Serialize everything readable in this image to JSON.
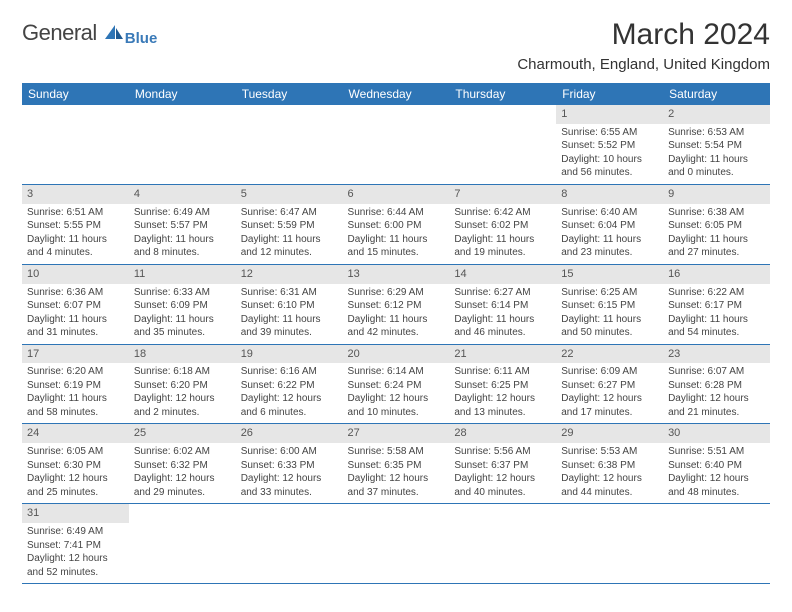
{
  "logo": {
    "text1": "General",
    "text2": "Blue"
  },
  "title": "March 2024",
  "location": "Charmouth, England, United Kingdom",
  "colors": {
    "header_bg": "#2e75b6",
    "daynum_bg": "#e6e6e6",
    "border": "#2e75b6"
  },
  "weekdays": [
    "Sunday",
    "Monday",
    "Tuesday",
    "Wednesday",
    "Thursday",
    "Friday",
    "Saturday"
  ],
  "weeks": [
    [
      null,
      null,
      null,
      null,
      null,
      {
        "n": "1",
        "sr": "6:55 AM",
        "ss": "5:52 PM",
        "dh": "10",
        "dm": "56"
      },
      {
        "n": "2",
        "sr": "6:53 AM",
        "ss": "5:54 PM",
        "dh": "11",
        "dm": "0"
      }
    ],
    [
      {
        "n": "3",
        "sr": "6:51 AM",
        "ss": "5:55 PM",
        "dh": "11",
        "dm": "4"
      },
      {
        "n": "4",
        "sr": "6:49 AM",
        "ss": "5:57 PM",
        "dh": "11",
        "dm": "8"
      },
      {
        "n": "5",
        "sr": "6:47 AM",
        "ss": "5:59 PM",
        "dh": "11",
        "dm": "12"
      },
      {
        "n": "6",
        "sr": "6:44 AM",
        "ss": "6:00 PM",
        "dh": "11",
        "dm": "15"
      },
      {
        "n": "7",
        "sr": "6:42 AM",
        "ss": "6:02 PM",
        "dh": "11",
        "dm": "19"
      },
      {
        "n": "8",
        "sr": "6:40 AM",
        "ss": "6:04 PM",
        "dh": "11",
        "dm": "23"
      },
      {
        "n": "9",
        "sr": "6:38 AM",
        "ss": "6:05 PM",
        "dh": "11",
        "dm": "27"
      }
    ],
    [
      {
        "n": "10",
        "sr": "6:36 AM",
        "ss": "6:07 PM",
        "dh": "11",
        "dm": "31"
      },
      {
        "n": "11",
        "sr": "6:33 AM",
        "ss": "6:09 PM",
        "dh": "11",
        "dm": "35"
      },
      {
        "n": "12",
        "sr": "6:31 AM",
        "ss": "6:10 PM",
        "dh": "11",
        "dm": "39"
      },
      {
        "n": "13",
        "sr": "6:29 AM",
        "ss": "6:12 PM",
        "dh": "11",
        "dm": "42"
      },
      {
        "n": "14",
        "sr": "6:27 AM",
        "ss": "6:14 PM",
        "dh": "11",
        "dm": "46"
      },
      {
        "n": "15",
        "sr": "6:25 AM",
        "ss": "6:15 PM",
        "dh": "11",
        "dm": "50"
      },
      {
        "n": "16",
        "sr": "6:22 AM",
        "ss": "6:17 PM",
        "dh": "11",
        "dm": "54"
      }
    ],
    [
      {
        "n": "17",
        "sr": "6:20 AM",
        "ss": "6:19 PM",
        "dh": "11",
        "dm": "58"
      },
      {
        "n": "18",
        "sr": "6:18 AM",
        "ss": "6:20 PM",
        "dh": "12",
        "dm": "2"
      },
      {
        "n": "19",
        "sr": "6:16 AM",
        "ss": "6:22 PM",
        "dh": "12",
        "dm": "6"
      },
      {
        "n": "20",
        "sr": "6:14 AM",
        "ss": "6:24 PM",
        "dh": "12",
        "dm": "10"
      },
      {
        "n": "21",
        "sr": "6:11 AM",
        "ss": "6:25 PM",
        "dh": "12",
        "dm": "13"
      },
      {
        "n": "22",
        "sr": "6:09 AM",
        "ss": "6:27 PM",
        "dh": "12",
        "dm": "17"
      },
      {
        "n": "23",
        "sr": "6:07 AM",
        "ss": "6:28 PM",
        "dh": "12",
        "dm": "21"
      }
    ],
    [
      {
        "n": "24",
        "sr": "6:05 AM",
        "ss": "6:30 PM",
        "dh": "12",
        "dm": "25"
      },
      {
        "n": "25",
        "sr": "6:02 AM",
        "ss": "6:32 PM",
        "dh": "12",
        "dm": "29"
      },
      {
        "n": "26",
        "sr": "6:00 AM",
        "ss": "6:33 PM",
        "dh": "12",
        "dm": "33"
      },
      {
        "n": "27",
        "sr": "5:58 AM",
        "ss": "6:35 PM",
        "dh": "12",
        "dm": "37"
      },
      {
        "n": "28",
        "sr": "5:56 AM",
        "ss": "6:37 PM",
        "dh": "12",
        "dm": "40"
      },
      {
        "n": "29",
        "sr": "5:53 AM",
        "ss": "6:38 PM",
        "dh": "12",
        "dm": "44"
      },
      {
        "n": "30",
        "sr": "5:51 AM",
        "ss": "6:40 PM",
        "dh": "12",
        "dm": "48"
      }
    ],
    [
      {
        "n": "31",
        "sr": "6:49 AM",
        "ss": "7:41 PM",
        "dh": "12",
        "dm": "52"
      },
      null,
      null,
      null,
      null,
      null,
      null
    ]
  ]
}
